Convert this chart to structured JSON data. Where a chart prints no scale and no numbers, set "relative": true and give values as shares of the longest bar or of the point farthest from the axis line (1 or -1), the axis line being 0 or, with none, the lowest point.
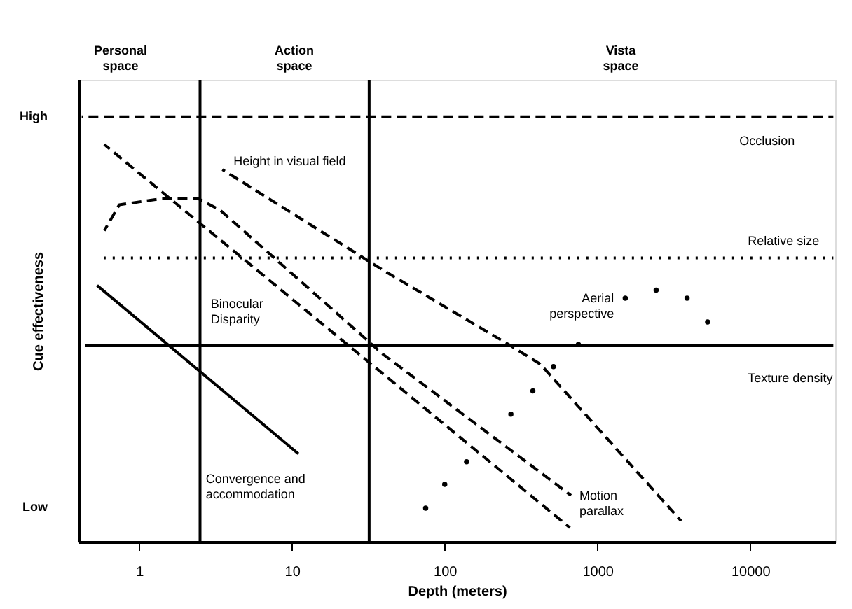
{
  "chart_data": {
    "type": "line",
    "xlabel": "Depth (meters)",
    "ylabel": "Cue effectiveness",
    "log": "x",
    "grid": false,
    "relative": true,
    "xlim": [
      0.4,
      36000
    ],
    "xticks": [
      1,
      10,
      100,
      1000,
      10000
    ],
    "series": [
      {
        "name": "Occlusion",
        "color": "#000000",
        "line_style": "dashed",
        "x": [
          0.42,
          35000
        ],
        "values": [
          1,
          1
        ]
      },
      {
        "name": "Relative size",
        "color": "#000000",
        "line_style": "dotted",
        "x": [
          0.59,
          35000
        ],
        "values": [
          0.668,
          0.668
        ]
      },
      {
        "name": "Texture density",
        "color": "#000000",
        "line_style": "solid",
        "x": [
          0.44,
          35000
        ],
        "values": [
          0.461,
          0.461
        ]
      },
      {
        "name": "Convergence and\naccommodation",
        "color": "#000000",
        "line_style": "solid",
        "x": [
          0.53,
          11
        ],
        "values": [
          0.603,
          0.207
        ]
      },
      {
        "name": "Binocular\nDisparity",
        "color": "#000000",
        "line_style": "dashed",
        "x": [
          0.59,
          660
        ],
        "values": [
          0.935,
          0.033
        ]
      },
      {
        "name": "Motion\nparallax",
        "color": "#000000",
        "line_style": "dashed",
        "x": [
          0.59,
          0.74,
          1.36,
          2.45,
          3.4,
          39.5,
          671
        ],
        "values": [
          0.732,
          0.793,
          0.807,
          0.807,
          0.78,
          0.441,
          0.109
        ]
      },
      {
        "name": "Height in visual field",
        "color": "#000000",
        "line_style": "dashed",
        "x": [
          3.5,
          39.5,
          271,
          422,
          3530
        ],
        "values": [
          0.876,
          0.639,
          0.461,
          0.418,
          0.049
        ]
      },
      {
        "name": "Aerial\nperspective",
        "type": "scatter",
        "color": "#000000",
        "marker": "circle",
        "x": [
          75,
          100,
          139,
          271,
          378,
          515,
          750,
          1520,
          2420,
          3860,
          5260
        ],
        "values": [
          0.079,
          0.135,
          0.188,
          0.3,
          0.355,
          0.412,
          0.464,
          0.573,
          0.592,
          0.573,
          0.517
        ]
      }
    ],
    "ref_lines": [
      {
        "axis": "x",
        "value": 2.5,
        "color": "#000000"
      },
      {
        "axis": "x",
        "value": 32,
        "color": "#000000"
      }
    ],
    "annotations": [
      "Personal\nspace",
      "Action\nspace",
      "Vista\nspace",
      "High",
      "Low"
    ]
  }
}
